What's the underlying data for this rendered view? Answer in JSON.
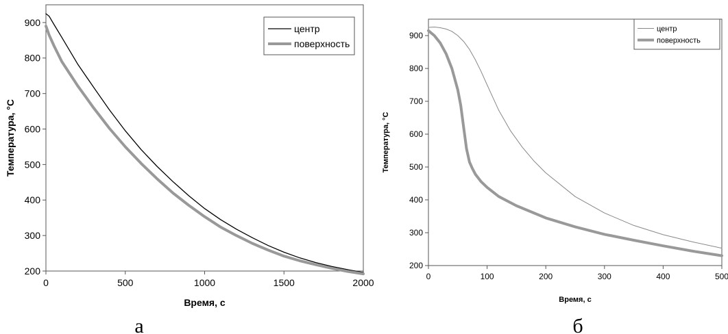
{
  "chart_data": [
    {
      "type": "line",
      "panel_label": "а",
      "xlabel": "Время, с",
      "ylabel": "Температура, °С",
      "xlim": [
        0,
        2000
      ],
      "ylim": [
        200,
        950
      ],
      "xticks": [
        0,
        500,
        1000,
        1500,
        2000
      ],
      "yticks": [
        200,
        300,
        400,
        500,
        600,
        700,
        800,
        900
      ],
      "legend_position": "top-right",
      "series": [
        {
          "name": "центр",
          "color": "#000000",
          "x": [
            0,
            20,
            50,
            100,
            200,
            300,
            400,
            500,
            600,
            700,
            800,
            900,
            1000,
            1100,
            1200,
            1300,
            1400,
            1500,
            1600,
            1700,
            1800,
            1900,
            2000
          ],
          "y": [
            925,
            918,
            895,
            858,
            783,
            718,
            654,
            595,
            542,
            495,
            452,
            412,
            376,
            345,
            318,
            294,
            272,
            253,
            237,
            224,
            213,
            204,
            196
          ]
        },
        {
          "name": "поверхность",
          "color": "#999999",
          "x": [
            0,
            20,
            50,
            100,
            200,
            300,
            400,
            500,
            600,
            700,
            800,
            900,
            1000,
            1100,
            1200,
            1300,
            1400,
            1500,
            1600,
            1700,
            1800,
            1900,
            2000
          ],
          "y": [
            890,
            865,
            835,
            790,
            722,
            660,
            602,
            550,
            503,
            460,
            420,
            385,
            353,
            324,
            300,
            278,
            259,
            242,
            229,
            218,
            208,
            199,
            192
          ]
        }
      ]
    },
    {
      "type": "line",
      "panel_label": "б",
      "xlabel": "Время, с",
      "ylabel": "Температура, °С",
      "xlim": [
        0,
        500
      ],
      "ylim": [
        200,
        950
      ],
      "xticks": [
        0,
        100,
        200,
        300,
        400,
        500
      ],
      "yticks": [
        200,
        300,
        400,
        500,
        600,
        700,
        800,
        900
      ],
      "legend_position": "top-right",
      "series": [
        {
          "name": "центр",
          "color": "#888888",
          "x": [
            0,
            10,
            20,
            30,
            40,
            50,
            60,
            70,
            80,
            90,
            100,
            120,
            140,
            160,
            180,
            200,
            250,
            300,
            350,
            400,
            450,
            500
          ],
          "y": [
            925,
            926,
            924,
            920,
            913,
            900,
            882,
            858,
            826,
            790,
            750,
            672,
            610,
            560,
            518,
            482,
            410,
            360,
            322,
            294,
            272,
            253
          ]
        },
        {
          "name": "поверхность",
          "color": "#999999",
          "x": [
            0,
            10,
            20,
            30,
            40,
            50,
            55,
            60,
            65,
            70,
            75,
            80,
            90,
            100,
            120,
            150,
            200,
            250,
            300,
            350,
            400,
            450,
            500
          ],
          "y": [
            915,
            900,
            878,
            845,
            800,
            735,
            688,
            620,
            555,
            515,
            495,
            478,
            455,
            438,
            410,
            382,
            345,
            318,
            295,
            277,
            260,
            244,
            230
          ]
        }
      ]
    }
  ]
}
